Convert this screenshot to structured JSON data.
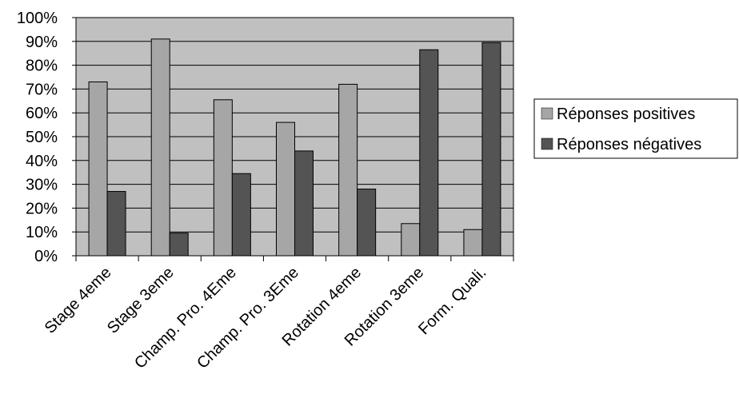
{
  "chart_data": {
    "type": "bar",
    "categories": [
      "Stage 4eme",
      "Stage 3eme",
      "Champ. Pro. 4Eme",
      "Champ. Pro. 3Eme",
      "Rotation 4eme",
      "Rotation 3eme",
      "Form. Quali."
    ],
    "series": [
      {
        "name": "Réponses positives",
        "color": "#a6a6a6",
        "values": [
          73,
          91,
          65.5,
          56,
          72,
          13.5,
          11
        ]
      },
      {
        "name": "Réponses négatives",
        "color": "#545454",
        "values": [
          27,
          9.5,
          34.5,
          44,
          28,
          86.5,
          89.5
        ]
      }
    ],
    "yticks": [
      "0%",
      "10%",
      "20%",
      "30%",
      "40%",
      "50%",
      "60%",
      "70%",
      "80%",
      "90%",
      "100%"
    ],
    "ylim": [
      0,
      100
    ],
    "grid": true,
    "legend": "right",
    "plot_background": "#c0c0c0"
  }
}
